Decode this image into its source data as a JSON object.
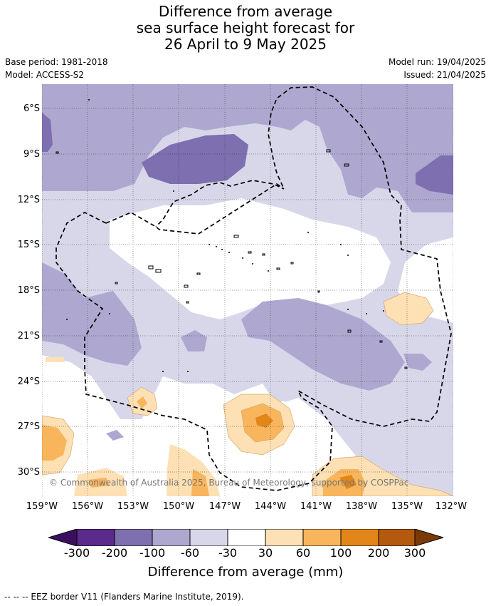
{
  "title": {
    "line1": "Difference from average",
    "line2": "sea surface height forecast for",
    "line3": "26 April to 9 May 2025"
  },
  "meta": {
    "base_period": "Base period: 1981-2018",
    "model": "Model: ACCESS-S2",
    "model_run": "Model run: 19/04/2025",
    "issued": "Issued: 21/04/2025"
  },
  "map": {
    "lat_ticks": [
      "6°S",
      "9°S",
      "12°S",
      "15°S",
      "18°S",
      "21°S",
      "24°S",
      "27°S",
      "30°S"
    ],
    "lon_ticks": [
      "159°W",
      "156°W",
      "153°W",
      "150°W",
      "147°W",
      "144°W",
      "141°W",
      "138°W",
      "135°W",
      "132°W"
    ],
    "copyright": "© Commonwealth of Australia 2025, Bureau of Meteorology, supported by COSPPac",
    "grid": true,
    "eez_style": "dashed"
  },
  "colorbar": {
    "labels": [
      "-300",
      "-200",
      "-100",
      "-60",
      "-30",
      "30",
      "60",
      "100",
      "200",
      "300"
    ],
    "colors": [
      "#3b0f5e",
      "#5b2a8a",
      "#7e6fb0",
      "#aea8d0",
      "#d8d7ea",
      "#ffffff",
      "#fde0b4",
      "#f9b55c",
      "#e3861a",
      "#b35a0e",
      "#7a3a08"
    ],
    "title": "Difference from average (mm)"
  },
  "footer": {
    "text": "-- -- -- EEZ border V11 (Flanders Marine Institute, 2019)."
  }
}
